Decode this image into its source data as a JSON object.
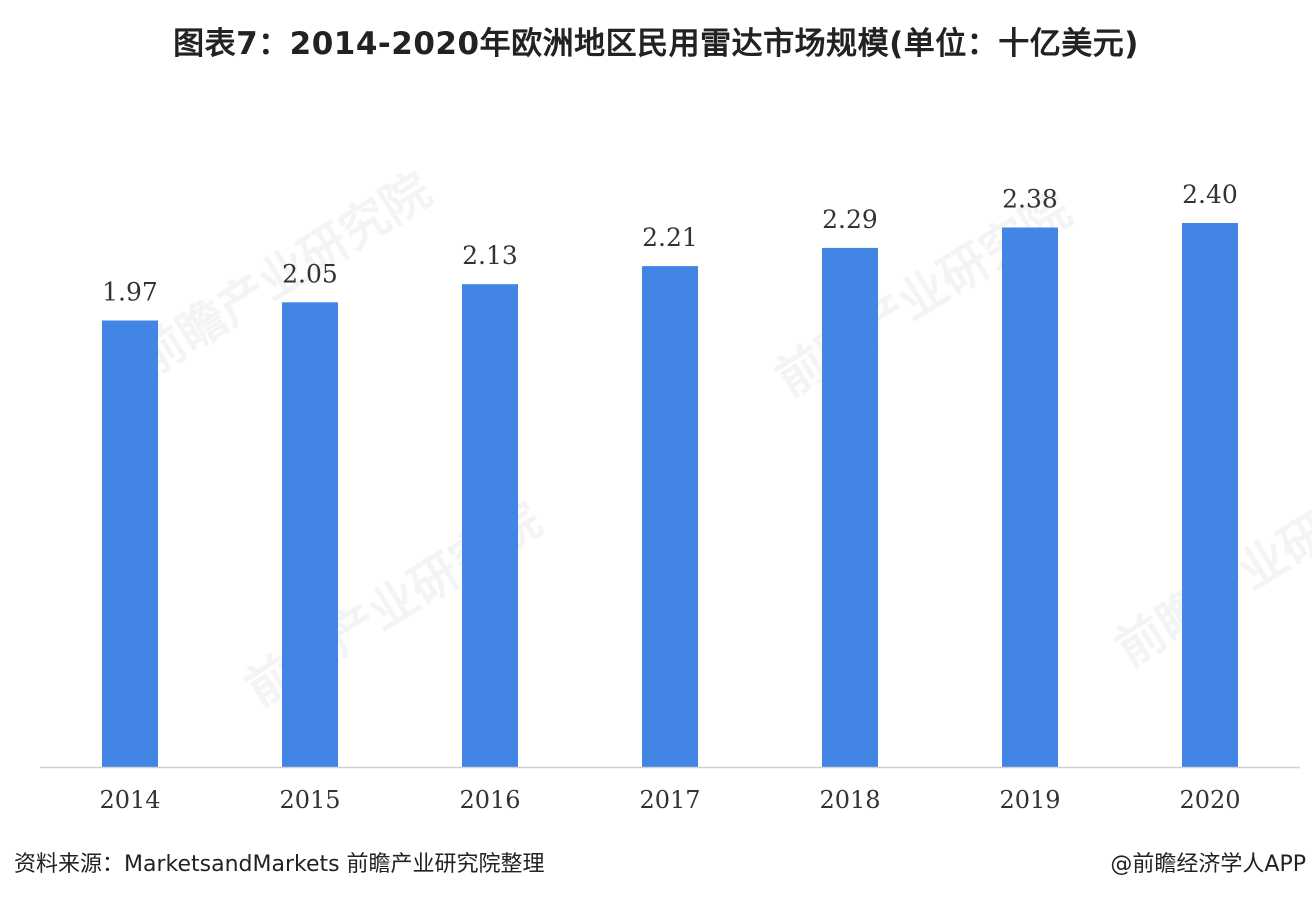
{
  "title": "图表7：2014-2020年欧洲地区民用雷达市场规模(单位：十亿美元)",
  "source": "资料来源：MarketsandMarkets 前瞻产业研究院整理",
  "credit": "@前瞻经济学人APP",
  "watermark_text": "前瞻产业研究院",
  "chart_data": {
    "type": "bar",
    "title": "图表7：2014-2020年欧洲地区民用雷达市场规模(单位：十亿美元)",
    "categories": [
      "2014",
      "2015",
      "2016",
      "2017",
      "2018",
      "2019",
      "2020"
    ],
    "values": [
      1.97,
      2.05,
      2.13,
      2.21,
      2.29,
      2.38,
      2.4
    ],
    "data_labels": [
      "1.97",
      "2.05",
      "2.13",
      "2.21",
      "2.29",
      "2.38",
      "2.40"
    ],
    "xlabel": "",
    "ylabel": "",
    "ylim": [
      0,
      2.4
    ],
    "grid": false,
    "legend": "none",
    "bar_color": "#4285e4",
    "axis_color": "#d0d0d0"
  }
}
